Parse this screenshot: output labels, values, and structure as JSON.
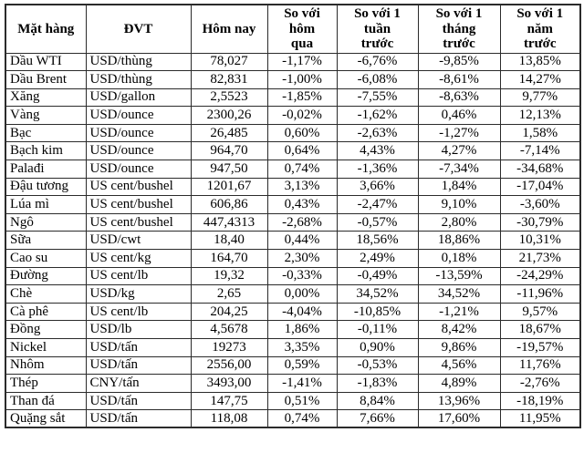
{
  "chart_data": {
    "type": "table",
    "title": "",
    "columns": [
      "Mặt hàng",
      "ĐVT",
      "Hôm nay",
      "So với\nhôm\nqua",
      "So với 1\ntuần\ntrước",
      "So với 1\ntháng\ntrước",
      "So với 1\nnăm\ntrước"
    ],
    "rows": [
      [
        "Dầu WTI",
        "USD/thùng",
        "78,027",
        "-1,17%",
        "-6,76%",
        "-9,85%",
        "13,85%"
      ],
      [
        "Dầu Brent",
        "USD/thùng",
        "82,831",
        "-1,00%",
        "-6,08%",
        "-8,61%",
        "14,27%"
      ],
      [
        "Xăng",
        "USD/gallon",
        "2,5523",
        "-1,85%",
        "-7,55%",
        "-8,63%",
        "9,77%"
      ],
      [
        "Vàng",
        "USD/ounce",
        "2300,26",
        "-0,02%",
        "-1,62%",
        "0,46%",
        "12,13%"
      ],
      [
        "Bạc",
        "USD/ounce",
        "26,485",
        "0,60%",
        "-2,63%",
        "-1,27%",
        "1,58%"
      ],
      [
        "Bạch kim",
        "USD/ounce",
        "964,70",
        "0,64%",
        "4,43%",
        "4,27%",
        "-7,14%"
      ],
      [
        "Palađi",
        "USD/ounce",
        "947,50",
        "0,74%",
        "-1,36%",
        "-7,34%",
        "-34,68%"
      ],
      [
        "Đậu tương",
        "US cent/bushel",
        "1201,67",
        "3,13%",
        "3,66%",
        "1,84%",
        "-17,04%"
      ],
      [
        "Lúa mì",
        "US cent/bushel",
        "606,86",
        "0,43%",
        "-2,47%",
        "9,10%",
        "-3,60%"
      ],
      [
        "Ngô",
        "US cent/bushel",
        "447,4313",
        "-2,68%",
        "-0,57%",
        "2,80%",
        "-30,79%"
      ],
      [
        "Sữa",
        "USD/cwt",
        "18,40",
        "0,44%",
        "18,56%",
        "18,86%",
        "10,31%"
      ],
      [
        "Cao su",
        "US cent/kg",
        "164,70",
        "2,30%",
        "2,49%",
        "0,18%",
        "21,73%"
      ],
      [
        "Đường",
        "US cent/lb",
        "19,32",
        "-0,33%",
        "-0,49%",
        "-13,59%",
        "-24,29%"
      ],
      [
        "Chè",
        "USD/kg",
        "2,65",
        "0,00%",
        "34,52%",
        "34,52%",
        "-11,96%"
      ],
      [
        "Cà phê",
        "US cent/lb",
        "204,25",
        "-4,04%",
        "-10,85%",
        "-1,21%",
        "9,57%"
      ],
      [
        "Đồng",
        "USD/lb",
        "4,5678",
        "1,86%",
        "-0,11%",
        "8,42%",
        "18,67%"
      ],
      [
        "Nickel",
        "USD/tấn",
        "19273",
        "3,35%",
        "0,90%",
        "9,86%",
        "-19,57%"
      ],
      [
        "Nhôm",
        "USD/tấn",
        "2556,00",
        "0,59%",
        "-0,53%",
        "4,56%",
        "11,76%"
      ],
      [
        "Thép",
        "CNY/tấn",
        "3493,00",
        "-1,41%",
        "-1,83%",
        "4,89%",
        "-2,76%"
      ],
      [
        "Than đá",
        "USD/tấn",
        "147,75",
        "0,51%",
        "8,84%",
        "13,96%",
        "-18,19%"
      ],
      [
        "Quặng sắt",
        "USD/tấn",
        "118,08",
        "0,74%",
        "7,66%",
        "17,60%",
        "11,95%"
      ]
    ],
    "layout": {
      "border_color": "#2b2b2b",
      "text_color": "#000000",
      "background_color": "#ffffff"
    }
  }
}
